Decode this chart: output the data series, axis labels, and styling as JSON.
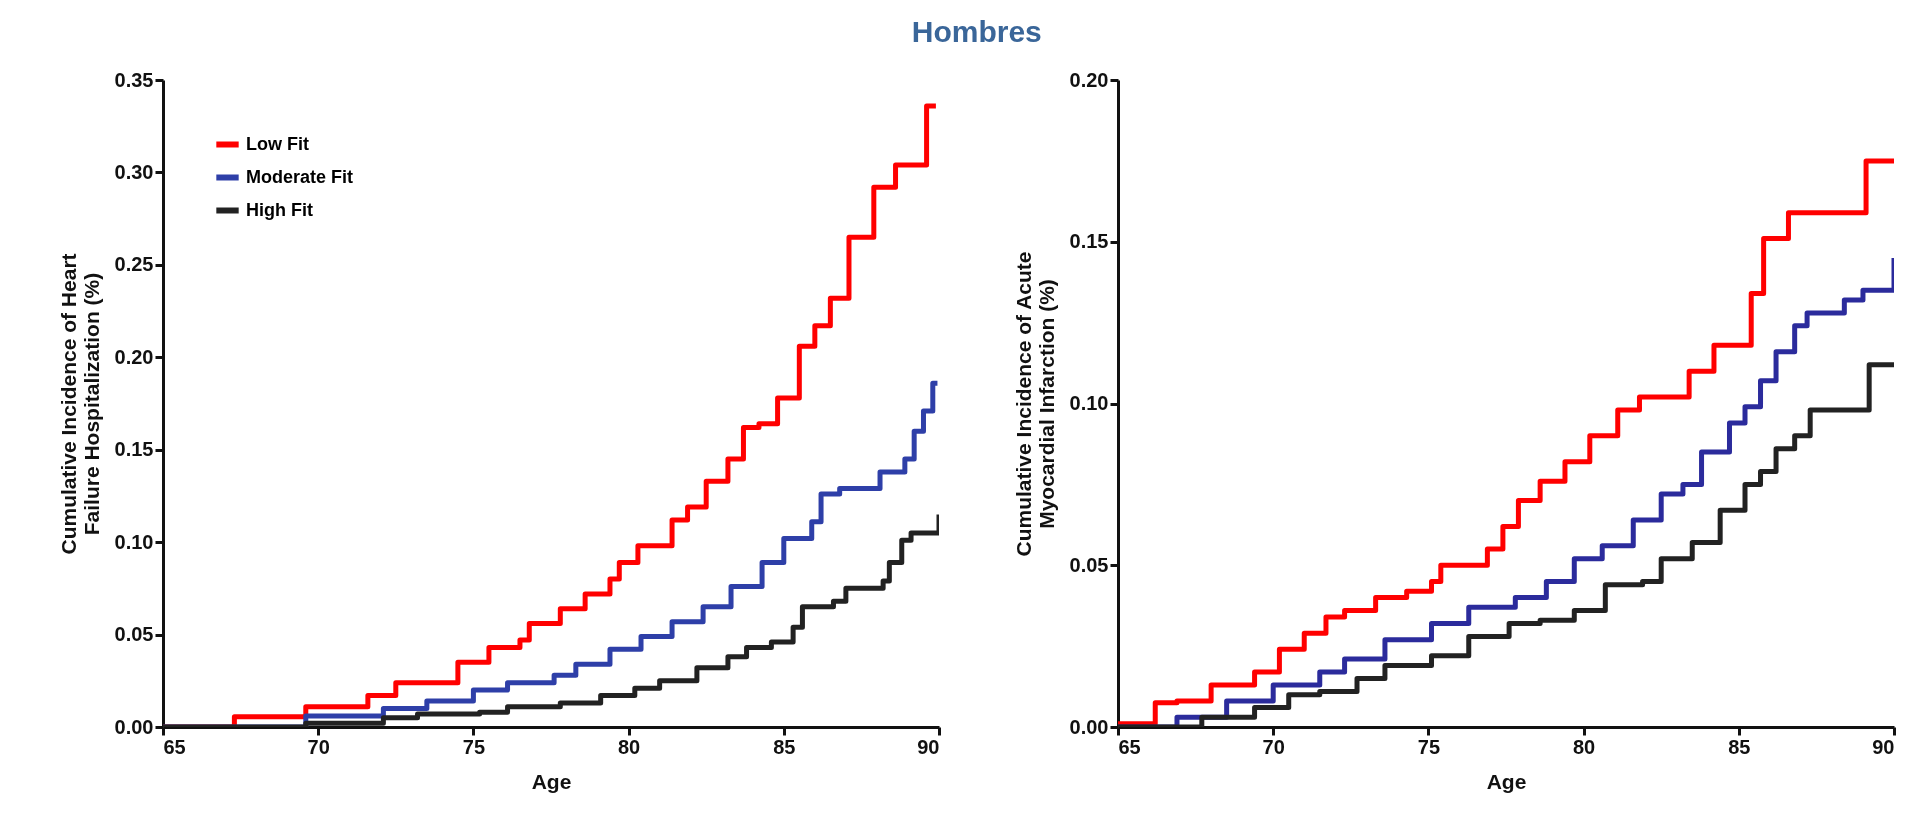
{
  "chart_data": [
    {
      "type": "step",
      "title": "Hombres",
      "xlabel": "Age",
      "ylabel": "Cumulative Incidence of Heart\nFailure Hospitalization (%)",
      "xlim": [
        65,
        90
      ],
      "xticks": [
        65,
        70,
        75,
        80,
        85,
        90
      ],
      "ylim": [
        0,
        0.35
      ],
      "yticks": [
        {
          "value": 0,
          "label": "0.00"
        },
        {
          "value": 0.05,
          "label": "0.05"
        },
        {
          "value": 0.1,
          "label": "0.10"
        },
        {
          "value": 0.15,
          "label": "0.15"
        },
        {
          "value": 0.2,
          "label": "0.20"
        },
        {
          "value": 0.25,
          "label": "0.25"
        },
        {
          "value": 0.3,
          "label": "0.30"
        },
        {
          "value": 0.35,
          "label": "0.35"
        }
      ],
      "legend": "top left",
      "series": [
        {
          "name": "Low Fit",
          "color": "#ff0000",
          "x": [
            65,
            67.3,
            69.6,
            71.6,
            72.5,
            74.5,
            75.5,
            76.5,
            76.8,
            77.8,
            78.6,
            79.4,
            79.7,
            80.3,
            81.4,
            81.9,
            82.5,
            83.2,
            83.7,
            84.2,
            84.8,
            85.5,
            86.0,
            86.5,
            87.1,
            87.9,
            88.6,
            89.6,
            89.9
          ],
          "values": [
            0,
            0.0055,
            0.011,
            0.017,
            0.024,
            0.035,
            0.043,
            0.047,
            0.056,
            0.064,
            0.072,
            0.08,
            0.089,
            0.098,
            0.112,
            0.119,
            0.133,
            0.145,
            0.162,
            0.164,
            0.178,
            0.206,
            0.217,
            0.232,
            0.265,
            0.292,
            0.304,
            0.336,
            0.336
          ]
        },
        {
          "name": "Moderate  Fit",
          "color": "#2e3fa8",
          "x": [
            65,
            69.6,
            72.1,
            73.5,
            75.0,
            76.1,
            77.6,
            78.3,
            79.4,
            80.4,
            81.4,
            82.4,
            83.3,
            84.3,
            85.0,
            85.9,
            86.2,
            86.8,
            88.1,
            88.9,
            89.2,
            89.5,
            89.8,
            89.95
          ],
          "values": [
            0,
            0.006,
            0.01,
            0.014,
            0.02,
            0.024,
            0.028,
            0.034,
            0.042,
            0.049,
            0.057,
            0.065,
            0.076,
            0.089,
            0.102,
            0.111,
            0.126,
            0.129,
            0.138,
            0.145,
            0.16,
            0.171,
            0.186,
            0.186
          ]
        },
        {
          "name": "High  Fit",
          "color": "#222222",
          "x": [
            65,
            69.6,
            72.1,
            73.2,
            75.2,
            76.1,
            77.8,
            79.1,
            80.2,
            81.0,
            82.2,
            83.2,
            83.8,
            84.6,
            85.3,
            85.6,
            86.6,
            87.0,
            88.2,
            88.4,
            88.8,
            89.1,
            90.0
          ],
          "values": [
            0,
            0.002,
            0.005,
            0.007,
            0.008,
            0.011,
            0.013,
            0.017,
            0.021,
            0.025,
            0.032,
            0.038,
            0.043,
            0.046,
            0.054,
            0.065,
            0.068,
            0.075,
            0.079,
            0.089,
            0.101,
            0.105,
            0.115
          ]
        }
      ]
    },
    {
      "type": "step",
      "xlabel": "Age",
      "ylabel": "Cumulative Incidence of  Acute\nMyocardial  Infarction (%)",
      "xlim": [
        65,
        90
      ],
      "xticks": [
        65,
        70,
        75,
        80,
        85,
        90
      ],
      "ylim": [
        0,
        0.2
      ],
      "yticks": [
        {
          "value": 0,
          "label": "0.00"
        },
        {
          "value": 0.05,
          "label": "0.05"
        },
        {
          "value": 0.1,
          "label": "0.10"
        },
        {
          "value": 0.15,
          "label": "0.15"
        },
        {
          "value": 0.2,
          "label": "0.20"
        }
      ],
      "series": [
        {
          "color": "#ff0000",
          "x": [
            65,
            66.2,
            66.9,
            68.0,
            69.4,
            70.2,
            71.0,
            71.7,
            72.3,
            73.3,
            74.3,
            75.1,
            75.4,
            76.9,
            77.4,
            77.9,
            78.6,
            79.4,
            80.2,
            81.1,
            81.8,
            83.4,
            84.2,
            85.4,
            85.8,
            86.6,
            89.1,
            90
          ],
          "values": [
            0.001,
            0.0075,
            0.008,
            0.013,
            0.017,
            0.024,
            0.029,
            0.034,
            0.036,
            0.04,
            0.042,
            0.045,
            0.05,
            0.055,
            0.062,
            0.07,
            0.076,
            0.082,
            0.09,
            0.098,
            0.102,
            0.11,
            0.118,
            0.134,
            0.151,
            0.159,
            0.175,
            0.175
          ]
        },
        {
          "color": "#2b2b9c",
          "x": [
            65,
            66.9,
            68.5,
            70.0,
            71.5,
            72.3,
            73.6,
            75.1,
            76.3,
            77.8,
            78.8,
            79.7,
            80.6,
            81.6,
            82.5,
            83.2,
            83.8,
            84.7,
            85.2,
            85.7,
            86.2,
            86.8,
            87.2,
            88.4,
            89.0,
            90
          ],
          "values": [
            0,
            0.003,
            0.008,
            0.013,
            0.017,
            0.021,
            0.027,
            0.032,
            0.037,
            0.04,
            0.045,
            0.052,
            0.056,
            0.064,
            0.072,
            0.075,
            0.085,
            0.094,
            0.099,
            0.107,
            0.116,
            0.124,
            0.128,
            0.132,
            0.135,
            0.145
          ]
        },
        {
          "color": "#222222",
          "x": [
            65,
            67.7,
            69.4,
            70.5,
            71.5,
            72.7,
            73.6,
            75.1,
            76.3,
            77.6,
            78.6,
            79.7,
            80.7,
            81.9,
            82.5,
            83.5,
            84.4,
            85.2,
            85.7,
            86.2,
            86.8,
            87.3,
            89.2,
            90
          ],
          "values": [
            0,
            0.003,
            0.006,
            0.01,
            0.011,
            0.015,
            0.019,
            0.022,
            0.028,
            0.032,
            0.033,
            0.036,
            0.044,
            0.045,
            0.052,
            0.057,
            0.067,
            0.075,
            0.079,
            0.086,
            0.09,
            0.098,
            0.112,
            0.112
          ]
        }
      ]
    }
  ]
}
